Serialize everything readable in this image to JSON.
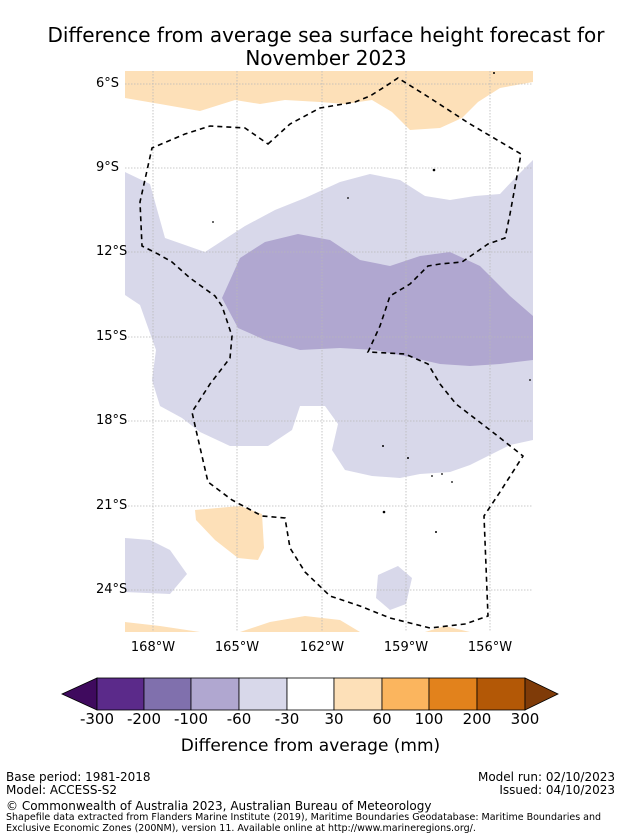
{
  "title": "Difference from average sea surface height forecast for November 2023",
  "map": {
    "lat_labels": [
      "6°S",
      "9°S",
      "12°S",
      "15°S",
      "18°S",
      "21°S",
      "24°S"
    ],
    "lon_labels": [
      "168°W",
      "165°W",
      "162°W",
      "159°W",
      "156°W"
    ]
  },
  "colorbar": {
    "ticks": [
      "-300",
      "-200",
      "-100",
      "-60",
      "-30",
      "30",
      "60",
      "100",
      "200",
      "300"
    ],
    "colors": [
      "#3f0a5e",
      "#5b2a8a",
      "#8070ad",
      "#b0a7d0",
      "#d8d8ea",
      "#ffffff",
      "#fde0b8",
      "#fbb55e",
      "#e2821c",
      "#b35806",
      "#7f3b08"
    ],
    "label": "Difference from average (mm)"
  },
  "footer": {
    "base_period": "Base period: 1981-2018",
    "model": "Model: ACCESS-S2",
    "model_run": "Model run: 02/10/2023",
    "issued": "Issued: 04/10/2023",
    "copyright": "© Commonwealth of Australia 2023, Australian Bureau of Meteorology",
    "shapefile": "Shapefile data extracted from Flanders Marine Institute (2019), Maritime Boundaries Geodatabase: Maritime Boundaries and Exclusive Economic Zones (200NM), version 11. Available online at http://www.marineregions.org/."
  }
}
